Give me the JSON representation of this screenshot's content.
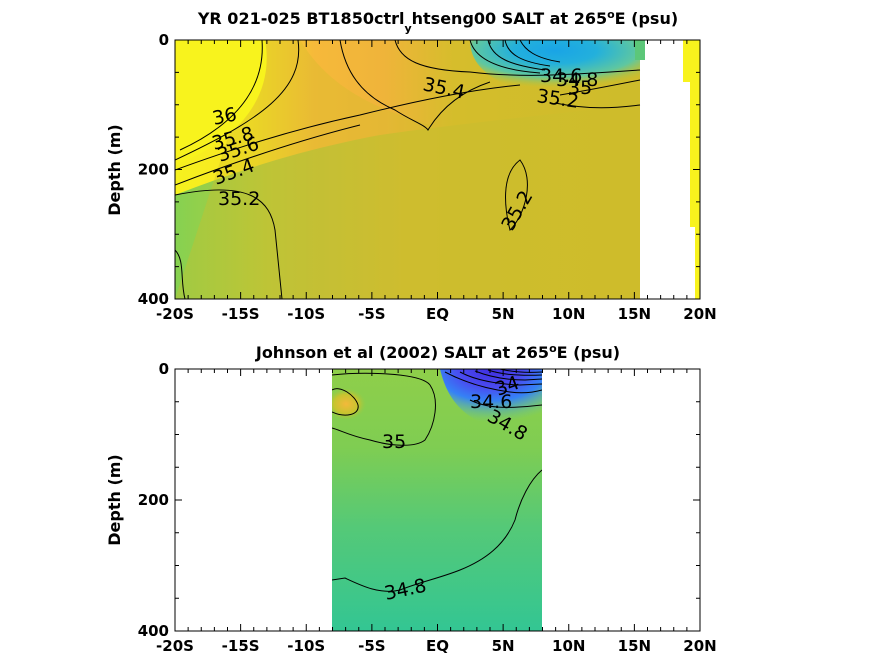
{
  "chart_data": [
    {
      "type": "heatmap",
      "title_main": "YR 021-025 BT1850ctrl",
      "title_sub": "y",
      "title_rest": "htseng00 SALT at 265",
      "title_sup": "o",
      "title_end": "E (psu)",
      "ylabel": "Depth (m)",
      "xlim": [
        -20,
        20
      ],
      "ylim": [
        400,
        0
      ],
      "x_tick_labels": [
        "-20S",
        "-15S",
        "-10S",
        "-5S",
        "EQ",
        "5N",
        "10N",
        "15N",
        "20N"
      ],
      "y_tick_labels": [
        "0",
        "200",
        "400"
      ],
      "colormap": "parula",
      "color_range_psu": [
        34.0,
        36.0
      ],
      "contour_labels": [
        "36",
        "35.8",
        "35.6",
        "35.4",
        "35.2",
        "35.4",
        "35.2",
        "34.6",
        "34.8",
        "35",
        "35.2"
      ]
    },
    {
      "type": "heatmap",
      "title_main": "Johnson et al (2002) SALT at 265",
      "title_sup": "o",
      "title_end": "E (psu)",
      "ylabel": "Depth (m)",
      "xlim": [
        -20,
        20
      ],
      "ylim": [
        400,
        0
      ],
      "x_tick_labels": [
        "-20S",
        "-15S",
        "-10S",
        "-5S",
        "EQ",
        "5N",
        "10N",
        "15N",
        "20N"
      ],
      "y_tick_labels": [
        "0",
        "200",
        "400"
      ],
      "colormap": "parula",
      "color_range_psu": [
        34.0,
        36.0
      ],
      "data_lon_range": [
        -8,
        8
      ],
      "contour_labels": [
        "34",
        "34.6",
        "34.8",
        "35",
        "34.8"
      ]
    }
  ]
}
